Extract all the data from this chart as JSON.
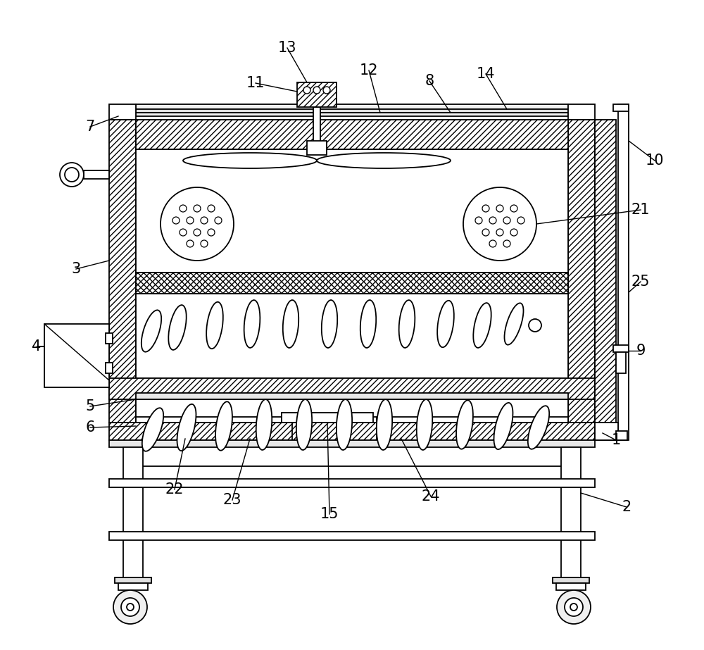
{
  "bg_color": "#ffffff",
  "figsize": [
    10.0,
    9.23
  ],
  "dpi": 100,
  "line_color": "#000000",
  "lw": 1.3
}
